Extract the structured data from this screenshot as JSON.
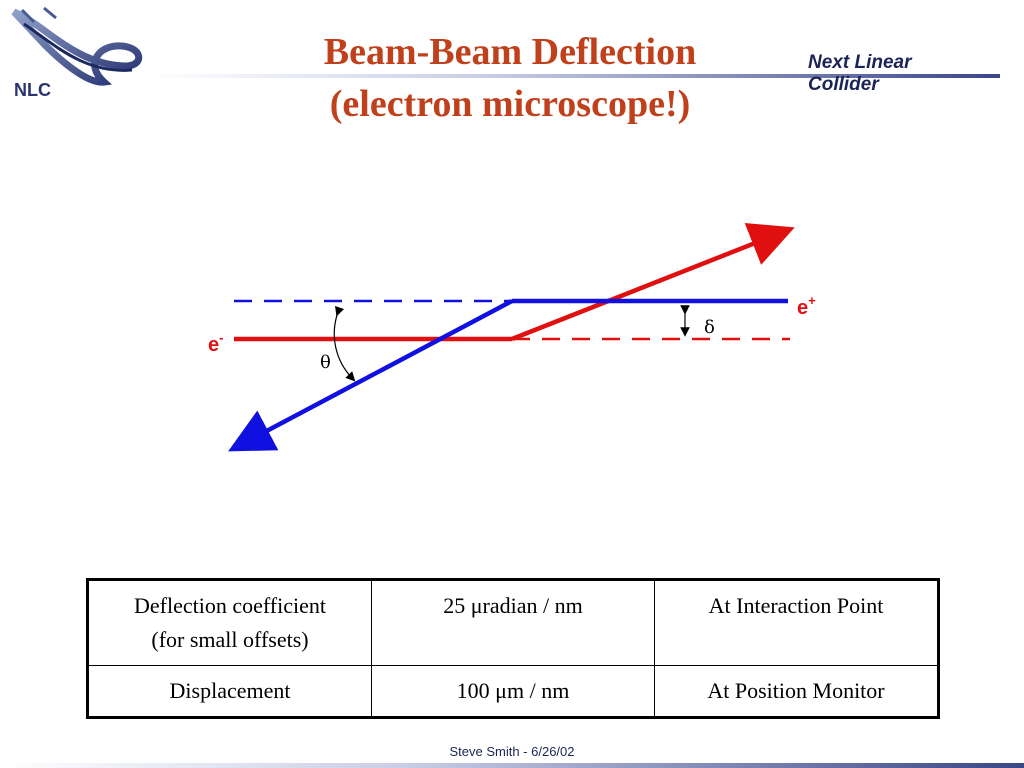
{
  "header": {
    "title_line1": "Beam-Beam Deflection",
    "title_line2": "(electron microscope!)",
    "subtitle_line1": "Next Linear",
    "subtitle_line2": "Collider",
    "logo_text": "NLC"
  },
  "diagram": {
    "label_positron": "e",
    "label_positron_sup": "+",
    "label_electron": "e",
    "label_electron_sup": "-",
    "label_theta": "θ",
    "label_delta": "δ",
    "colors": {
      "electron": "#e01010",
      "positron": "#1010e0"
    }
  },
  "table": {
    "rows": [
      {
        "c1_line1": "Deflection coefficient",
        "c1_line2": "(for small offsets)",
        "c2": "25 μradian / nm",
        "c3": "At Interaction Point"
      },
      {
        "c1_line1": "Displacement",
        "c1_line2": "",
        "c2": "100 μm / nm",
        "c3": "At Position Monitor"
      }
    ]
  },
  "footer": {
    "text": "Steve Smith  -  6/26/02"
  }
}
